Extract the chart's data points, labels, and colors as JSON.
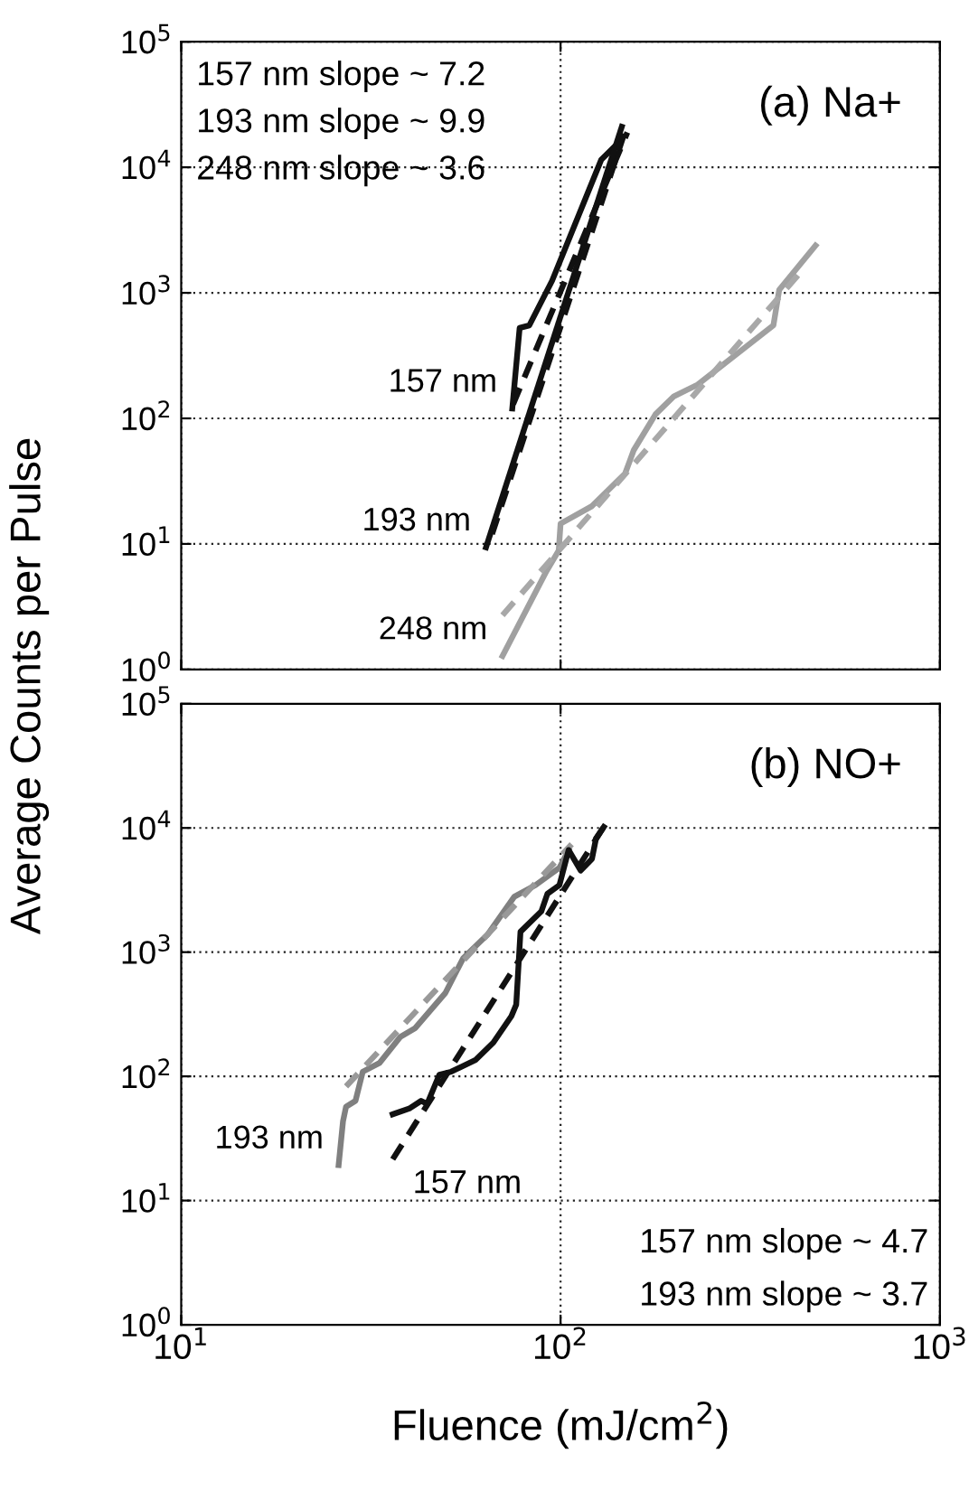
{
  "chart_data": [
    {
      "type": "line",
      "title": "(a) Na+",
      "ylabel": "Average Counts per Pulse",
      "log": "xy",
      "grid": true,
      "tick_labels": "y",
      "xlim": [
        10,
        1000
      ],
      "xticks": [
        {
          "value": 10,
          "label": null
        },
        {
          "value": 100,
          "label": null
        },
        {
          "value": 1000,
          "label": null
        }
      ],
      "ylim": [
        1,
        100000
      ],
      "yticks": [
        {
          "value": 1,
          "label": "10$^{0}$"
        },
        {
          "value": 10,
          "label": "10$^{1}$"
        },
        {
          "value": 100,
          "label": "10$^{2}$"
        },
        {
          "value": 1000,
          "label": "10$^{3}$"
        },
        {
          "value": 10000,
          "label": "10$^{4}$"
        },
        {
          "value": 100000,
          "label": "10$^{5}$"
        }
      ],
      "annotations": [
        "157 nm slope ~ 7.2",
        "193 nm slope ~ 9.9",
        "248 nm slope ~ 3.6"
      ],
      "series": [
        {
          "name": "157 nm",
          "color": "#111111",
          "line_style": "solid",
          "x": [
            74.6,
            78,
            82.7,
            95,
            128,
            143
          ],
          "values": [
            120,
            525,
            550,
            1250,
            11500,
            16000
          ]
        },
        {
          "color": "#111111",
          "line_style": "dashed",
          "x": [
            75,
            150
          ],
          "values": [
            130,
            19000
          ]
        },
        {
          "name": "193 nm",
          "color": "#111111",
          "line_style": "solid",
          "x": [
            63.6,
            145
          ],
          "values": [
            9.4,
            21000
          ]
        },
        {
          "color": "#111111",
          "line_style": "dashed",
          "x": [
            66,
            150
          ],
          "values": [
            12,
            22000
          ]
        },
        {
          "name": "248 nm",
          "color": "#a0a0a0",
          "line_style": "solid",
          "x": [
            70.3,
            91.8,
            98.9,
            100,
            121,
            148,
            156,
            178,
            199,
            230,
            364,
            377,
            470
          ],
          "values": [
            1.28,
            6.07,
            8.87,
            14.5,
            20.0,
            36.4,
            56,
            108,
            150,
            186,
            551,
            1057,
            2380
          ]
        },
        {
          "color": "#a8a8a8",
          "line_style": "dashed",
          "x": [
            70.3,
            437
          ],
          "values": [
            2.7,
            1550
          ]
        }
      ]
    },
    {
      "type": "line",
      "title": "(b) NO+",
      "xlabel": "Fluence (mJ/cm$^{2}$)",
      "log": "xy",
      "grid": true,
      "xlim": [
        10,
        1000
      ],
      "xticks": [
        {
          "value": 10,
          "label": "10$^{1}$"
        },
        {
          "value": 100,
          "label": "10$^{2}$"
        },
        {
          "value": 1000,
          "label": "10$^{3}$"
        }
      ],
      "ylim": [
        1,
        100000
      ],
      "yticks": [
        {
          "value": 1,
          "label": "10$^{0}$"
        },
        {
          "value": 10,
          "label": "10$^{1}$"
        },
        {
          "value": 100,
          "label": "10$^{2}$"
        },
        {
          "value": 1000,
          "label": "10$^{3}$"
        },
        {
          "value": 10000,
          "label": "10$^{4}$"
        },
        {
          "value": 100000,
          "label": "10$^{5}$"
        }
      ],
      "annotations": [
        "157 nm slope ~ 4.7",
        "193 nm slope ~ 3.7"
      ],
      "series": [
        {
          "name": "193 nm",
          "color": "#808080",
          "line_style": "solid",
          "x": [
            26.0,
            26.7,
            27.2,
            28.8,
            30.1,
            33.3,
            37.8,
            41.4,
            49.7,
            55.4,
            64.2,
            75.5,
            85.9,
            99.4,
            105
          ],
          "values": [
            19.3,
            43.5,
            57,
            63.5,
            109,
            128,
            208,
            245,
            469,
            897,
            1384,
            2795,
            3467,
            4800,
            6640
          ]
        },
        {
          "color": "#999999",
          "line_style": "dashed",
          "x": [
            27.2,
            107
          ],
          "values": [
            83,
            7400
          ]
        },
        {
          "color": "#111111",
          "line_style": "solid",
          "x": [
            36.1,
            39.9,
            42.9,
            44.5,
            47.9,
            51.5,
            59.6,
            66.5,
            74.2,
            76.4,
            78.4,
            89.0,
            92.3,
            99.3,
            105,
            113,
            121,
            124,
            130
          ],
          "values": [
            49.5,
            55,
            63.5,
            60,
            103,
            109,
            135,
            187,
            305,
            378,
            1460,
            2133,
            2946,
            3467,
            6640,
            4540,
            5640,
            8230,
            10200
          ]
        },
        {
          "name": "157 nm",
          "color": "#111111",
          "line_style": "dashed",
          "x": [
            36.1,
            130
          ],
          "values": [
            21.5,
            10200
          ]
        }
      ]
    }
  ]
}
